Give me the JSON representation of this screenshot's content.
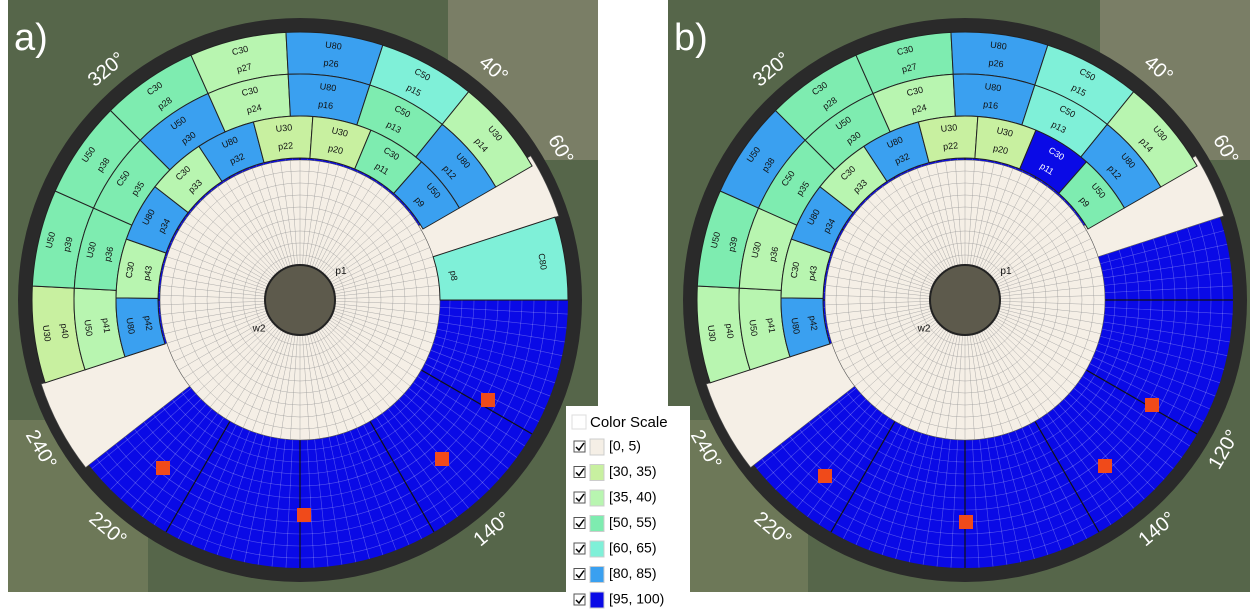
{
  "panels": [
    {
      "label": "a)",
      "angle_labels": [
        {
          "value": 320,
          "label": "320°"
        },
        {
          "value": 40,
          "label": "40°"
        },
        {
          "value": 60,
          "label": "60°"
        },
        {
          "value": 240,
          "label": "240°"
        },
        {
          "value": 220,
          "label": "220°"
        },
        {
          "value": 140,
          "label": "140°"
        }
      ],
      "center_labels": [
        "p1",
        "w2"
      ],
      "extra_plot": {
        "id": "p8",
        "treatment": "C80",
        "color": "#7ff0d8"
      },
      "rings": [
        [
          {
            "id": "p40",
            "treatment": "U30",
            "color": "#c8f0a0"
          },
          {
            "id": "p39",
            "treatment": "U50",
            "color": "#7eecb0"
          },
          {
            "id": "p38",
            "treatment": "U50",
            "color": "#7eecb0"
          },
          {
            "id": "p28",
            "treatment": "C30",
            "color": "#7eecb0"
          },
          {
            "id": "p27",
            "treatment": "C30",
            "color": "#b8f5b0"
          },
          {
            "id": "p26",
            "treatment": "U80",
            "color": "#3aa0f0"
          },
          {
            "id": "p15",
            "treatment": "C50",
            "color": "#7ff0d8"
          },
          {
            "id": "p14",
            "treatment": "U30",
            "color": "#b8f5b0"
          }
        ],
        [
          {
            "id": "p41",
            "treatment": "U50",
            "color": "#b8f5b0"
          },
          {
            "id": "p36",
            "treatment": "U30",
            "color": "#7eecb0"
          },
          {
            "id": "p35",
            "treatment": "C50",
            "color": "#7eecb0"
          },
          {
            "id": "p30",
            "treatment": "U50",
            "color": "#3aa0f0"
          },
          {
            "id": "p24",
            "treatment": "C30",
            "color": "#b8f5b0"
          },
          {
            "id": "p16",
            "treatment": "U80",
            "color": "#3aa0f0"
          },
          {
            "id": "p13",
            "treatment": "C50",
            "color": "#7eecb0"
          },
          {
            "id": "p12",
            "treatment": "U80",
            "color": "#3aa0f0"
          }
        ],
        [
          {
            "id": "p42",
            "treatment": "U80",
            "color": "#3aa0f0"
          },
          {
            "id": "p43",
            "treatment": "C30",
            "color": "#b8f5b0"
          },
          {
            "id": "p34",
            "treatment": "U80",
            "color": "#3aa0f0"
          },
          {
            "id": "p33",
            "treatment": "C30",
            "color": "#b8f5b0"
          },
          {
            "id": "p32",
            "treatment": "U80",
            "color": "#3aa0f0"
          },
          {
            "id": "p22",
            "treatment": "U30",
            "color": "#c8f0a0"
          },
          {
            "id": "p20",
            "treatment": "U30",
            "color": "#c8f0a0"
          },
          {
            "id": "p11",
            "treatment": "C30",
            "color": "#7eecb0"
          },
          {
            "id": "p9",
            "treatment": "U50",
            "color": "#3aa0f0"
          }
        ]
      ]
    },
    {
      "label": "b)",
      "angle_labels": [
        {
          "value": 320,
          "label": "320°"
        },
        {
          "value": 40,
          "label": "40°"
        },
        {
          "value": 60,
          "label": "60°"
        },
        {
          "value": 120,
          "label": "120°"
        },
        {
          "value": 140,
          "label": "140°"
        },
        {
          "value": 220,
          "label": "220°"
        },
        {
          "value": 240,
          "label": "240°"
        }
      ],
      "center_labels": [
        "p1",
        "w2"
      ],
      "rings": [
        [
          {
            "id": "p40",
            "treatment": "U30",
            "color": "#b8f5b0"
          },
          {
            "id": "p39",
            "treatment": "U50",
            "color": "#7eecb0"
          },
          {
            "id": "p38",
            "treatment": "U50",
            "color": "#3aa0f0"
          },
          {
            "id": "p28",
            "treatment": "C30",
            "color": "#7eecb0"
          },
          {
            "id": "p27",
            "treatment": "C30",
            "color": "#7eecb0"
          },
          {
            "id": "p26",
            "treatment": "U80",
            "color": "#3aa0f0"
          },
          {
            "id": "p15",
            "treatment": "C50",
            "color": "#7ff0d8"
          },
          {
            "id": "p14",
            "treatment": "U30",
            "color": "#b8f5b0"
          }
        ],
        [
          {
            "id": "p41",
            "treatment": "U50",
            "color": "#b8f5b0"
          },
          {
            "id": "p36",
            "treatment": "U30",
            "color": "#b8f5b0"
          },
          {
            "id": "p35",
            "treatment": "C50",
            "color": "#7eecb0"
          },
          {
            "id": "p30",
            "treatment": "U50",
            "color": "#7eecb0"
          },
          {
            "id": "p24",
            "treatment": "C30",
            "color": "#b8f5b0"
          },
          {
            "id": "p16",
            "treatment": "U80",
            "color": "#3aa0f0"
          },
          {
            "id": "p13",
            "treatment": "C50",
            "color": "#7ff0d8"
          },
          {
            "id": "p12",
            "treatment": "U80",
            "color": "#3aa0f0"
          }
        ],
        [
          {
            "id": "p42",
            "treatment": "U80",
            "color": "#3aa0f0"
          },
          {
            "id": "p43",
            "treatment": "C30",
            "color": "#b8f5b0"
          },
          {
            "id": "p34",
            "treatment": "U80",
            "color": "#3aa0f0"
          },
          {
            "id": "p33",
            "treatment": "C30",
            "color": "#b8f5b0"
          },
          {
            "id": "p32",
            "treatment": "U80",
            "color": "#3aa0f0"
          },
          {
            "id": "p22",
            "treatment": "U30",
            "color": "#c8f0a0"
          },
          {
            "id": "p20",
            "treatment": "U30",
            "color": "#c8f0a0"
          },
          {
            "id": "p11",
            "treatment": "C30",
            "color": "#0a0ae6"
          },
          {
            "id": "p9",
            "treatment": "U50",
            "color": "#7eecb0"
          }
        ]
      ]
    }
  ],
  "legend": {
    "title": "Color Scale",
    "items": [
      {
        "label": "[0, 5)",
        "color": "#f5efe6"
      },
      {
        "label": "[30, 35)",
        "color": "#c8f0a0"
      },
      {
        "label": "[35, 40)",
        "color": "#b8f5b0"
      },
      {
        "label": "[50, 55)",
        "color": "#7eecb0"
      },
      {
        "label": "[60, 65)",
        "color": "#7ff0d8"
      },
      {
        "label": "[80, 85)",
        "color": "#3aa0f0"
      },
      {
        "label": "[95, 100)",
        "color": "#0a0ae6"
      }
    ]
  }
}
